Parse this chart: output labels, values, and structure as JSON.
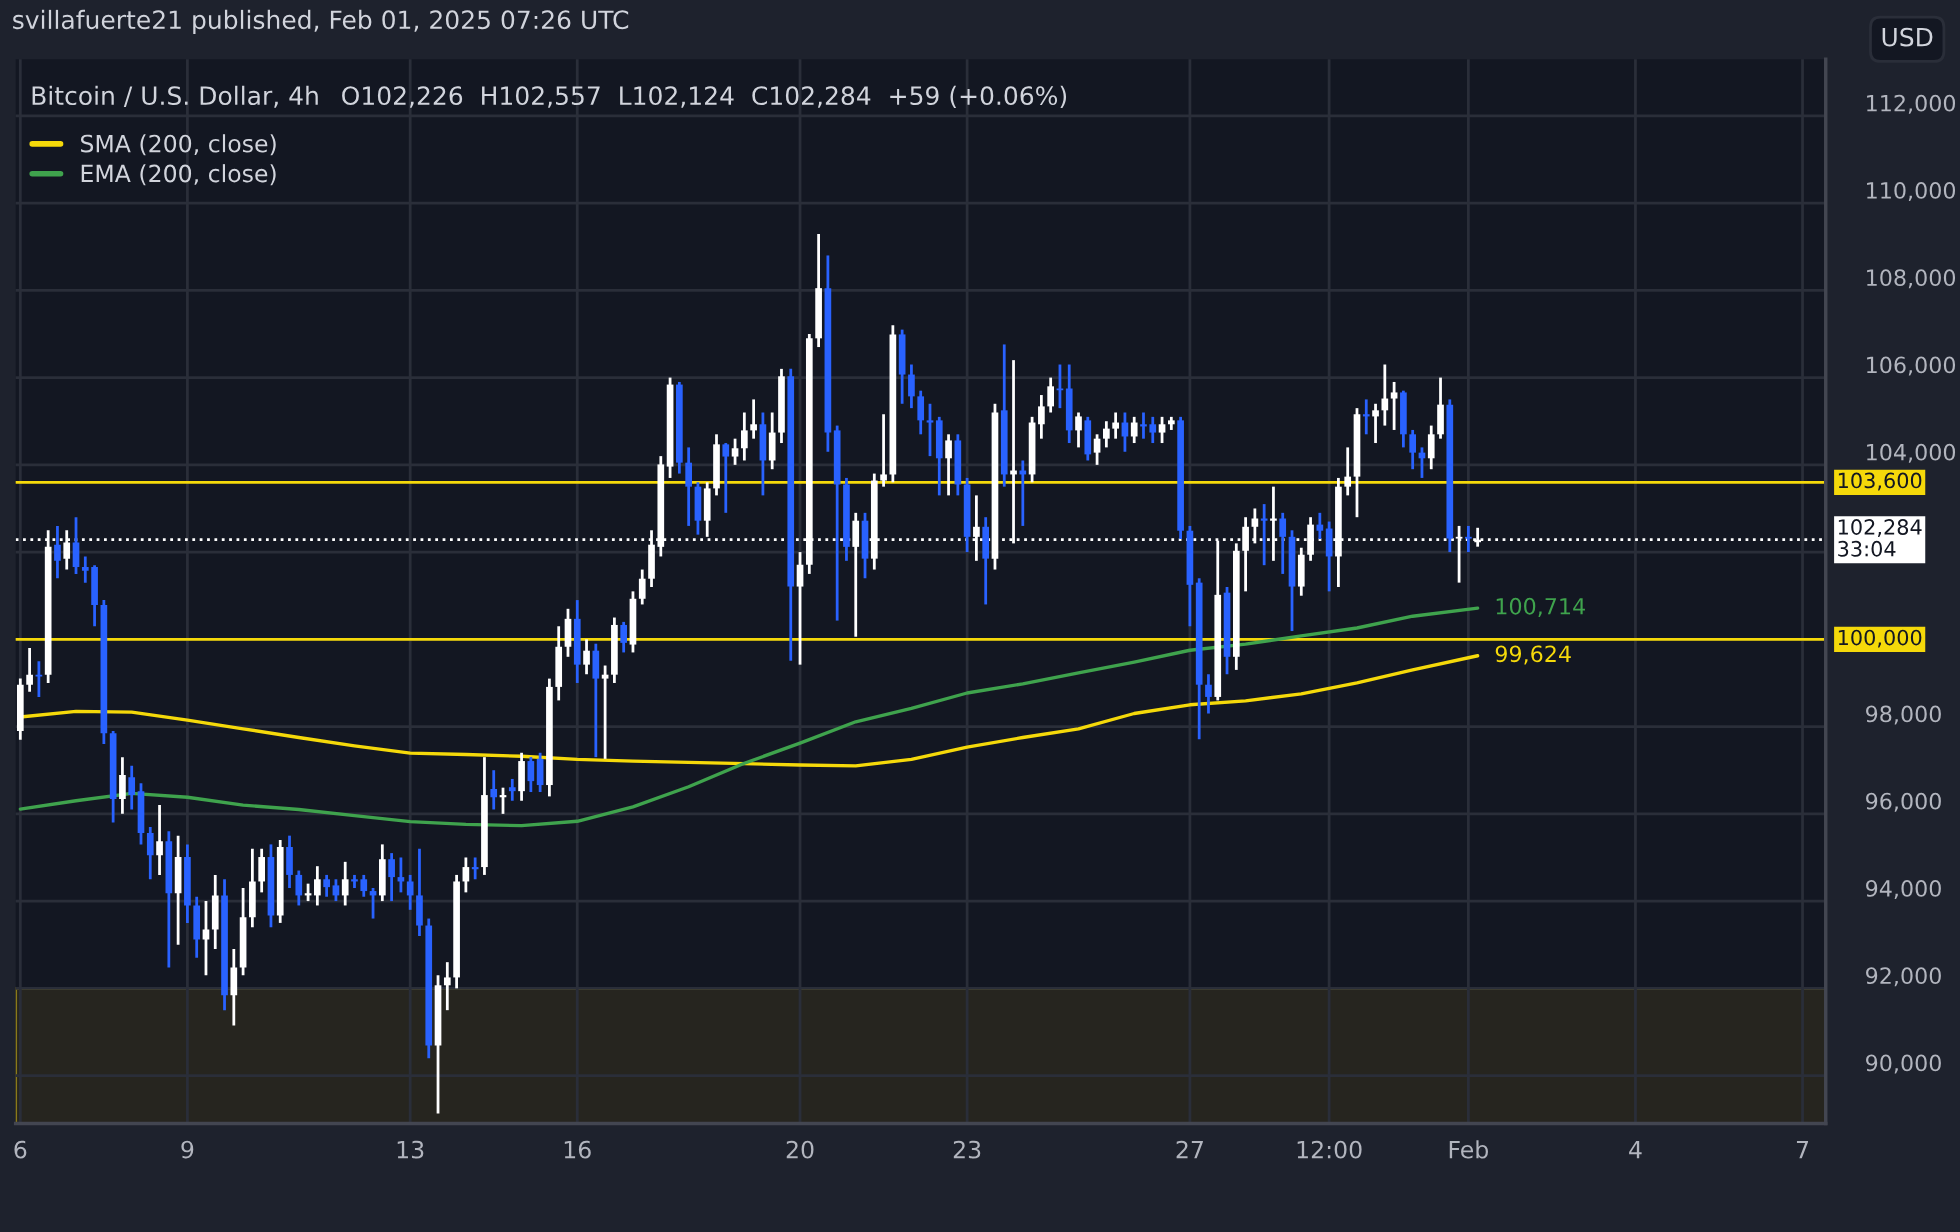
{
  "chart_data": {
    "type": "candlestick",
    "title": "Bitcoin / U.S. Dollar, 4h",
    "subtitle": "O102,226  H102,557  L102,124  C102,284  +59 (+0.06%)",
    "ylabel": "USD",
    "annotations": [
      "svillafuerte21 published, Feb 01, 2025 07:26 UTC"
    ],
    "categories": [
      "6",
      null,
      null,
      null,
      null,
      null,
      null,
      null,
      null,
      null,
      null,
      null,
      null,
      null,
      null,
      null,
      null,
      null,
      "9",
      null,
      null,
      null,
      null,
      null,
      null,
      null,
      null,
      null,
      null,
      null,
      null,
      null,
      null,
      null,
      null,
      null,
      null,
      null,
      null,
      null,
      null,
      null,
      "13",
      null,
      null,
      null,
      null,
      null,
      null,
      null,
      null,
      null,
      null,
      null,
      null,
      null,
      null,
      null,
      null,
      null,
      "16",
      null,
      null,
      null,
      null,
      null,
      null,
      null,
      null,
      null,
      null,
      null,
      null,
      null,
      null,
      null,
      null,
      null,
      null,
      null,
      null,
      null,
      null,
      null,
      "20",
      null,
      null,
      null,
      null,
      null,
      null,
      null,
      null,
      null,
      null,
      null,
      null,
      null,
      null,
      null,
      null,
      null,
      "23",
      null,
      null,
      null,
      null,
      null,
      null,
      null,
      null,
      null,
      null,
      null,
      null,
      null,
      null,
      null,
      null,
      null,
      null,
      null,
      null,
      null,
      null,
      null,
      "27",
      null,
      null,
      null,
      null,
      null,
      null,
      null,
      null,
      null,
      null,
      null,
      null,
      null,
      null,
      "12:00",
      null,
      null,
      null,
      null,
      null,
      null,
      null,
      null,
      null,
      null,
      null,
      null,
      null,
      null,
      "Feb",
      null,
      null,
      null,
      null,
      null,
      null,
      null,
      null,
      null,
      null,
      null,
      null,
      null,
      null,
      null,
      null,
      null,
      "4",
      null,
      null,
      null,
      null,
      null,
      null,
      null,
      null,
      null,
      null,
      null,
      null,
      null,
      null,
      null,
      null,
      null,
      "7",
      null,
      null
    ],
    "ohlc": [
      [
        97900,
        99100,
        97700,
        98960
      ],
      [
        98960,
        99800,
        98800,
        99190
      ],
      [
        99190,
        99500,
        98680,
        99150
      ],
      [
        99190,
        102500,
        99000,
        102120
      ],
      [
        102170,
        102600,
        101400,
        101800
      ],
      [
        101850,
        102500,
        101600,
        102220
      ],
      [
        102220,
        102800,
        101500,
        101660
      ],
      [
        101660,
        101900,
        101300,
        101570
      ],
      [
        101660,
        101700,
        100300,
        100790
      ],
      [
        100790,
        100900,
        97600,
        97850
      ],
      [
        97850,
        97900,
        95800,
        96340
      ],
      [
        96340,
        97300,
        96000,
        96890
      ],
      [
        96840,
        97100,
        96100,
        96430
      ],
      [
        96520,
        96700,
        95300,
        95560
      ],
      [
        95560,
        95700,
        94500,
        95050
      ],
      [
        95050,
        96200,
        94600,
        95370
      ],
      [
        95370,
        95600,
        92480,
        94180
      ],
      [
        94180,
        95500,
        93000,
        95010
      ],
      [
        95010,
        95300,
        93500,
        93900
      ],
      [
        93900,
        94100,
        92700,
        93120
      ],
      [
        93120,
        94000,
        92300,
        93350
      ],
      [
        93350,
        94600,
        92900,
        94130
      ],
      [
        94130,
        94500,
        91500,
        91840
      ],
      [
        91840,
        92900,
        91150,
        92480
      ],
      [
        92480,
        94300,
        92300,
        93630
      ],
      [
        93630,
        95200,
        93400,
        94450
      ],
      [
        94450,
        95200,
        94200,
        95010
      ],
      [
        95010,
        95300,
        93400,
        93670
      ],
      [
        93670,
        95400,
        93500,
        95240
      ],
      [
        95240,
        95500,
        94300,
        94600
      ],
      [
        94600,
        94700,
        93900,
        94130
      ],
      [
        94130,
        94400,
        94000,
        94180
      ],
      [
        94130,
        94800,
        93900,
        94500
      ],
      [
        94500,
        94600,
        94100,
        94320
      ],
      [
        94360,
        94500,
        94000,
        94130
      ],
      [
        94130,
        94900,
        93900,
        94500
      ],
      [
        94500,
        94600,
        94300,
        94450
      ],
      [
        94500,
        94600,
        94100,
        94230
      ],
      [
        94230,
        94300,
        93600,
        94130
      ],
      [
        94130,
        95300,
        94000,
        94960
      ],
      [
        94960,
        95100,
        94000,
        94550
      ],
      [
        94550,
        95000,
        94200,
        94450
      ],
      [
        94450,
        94600,
        93800,
        94130
      ],
      [
        94130,
        95200,
        93200,
        93440
      ],
      [
        93440,
        93600,
        90400,
        90690
      ],
      [
        90690,
        92300,
        89130,
        92070
      ],
      [
        92070,
        92600,
        91500,
        92250
      ],
      [
        92250,
        94600,
        92000,
        94450
      ],
      [
        94450,
        95000,
        94200,
        94780
      ],
      [
        94780,
        95000,
        94500,
        94730
      ],
      [
        94780,
        97300,
        94600,
        96430
      ],
      [
        96570,
        97000,
        96100,
        96380
      ],
      [
        96380,
        96600,
        96000,
        96430
      ],
      [
        96610,
        96800,
        96300,
        96520
      ],
      [
        96520,
        97400,
        96300,
        97210
      ],
      [
        97210,
        97300,
        96500,
        96750
      ],
      [
        97260,
        97400,
        96500,
        96660
      ],
      [
        96660,
        99100,
        96400,
        98910
      ],
      [
        98910,
        100300,
        98600,
        99830
      ],
      [
        99830,
        100700,
        99600,
        100470
      ],
      [
        100470,
        100900,
        99000,
        99420
      ],
      [
        99420,
        100000,
        99200,
        99740
      ],
      [
        99740,
        99900,
        97300,
        99100
      ],
      [
        99100,
        99400,
        97260,
        99190
      ],
      [
        99190,
        100500,
        99000,
        100330
      ],
      [
        100330,
        100400,
        99700,
        99920
      ],
      [
        99880,
        101100,
        99700,
        100930
      ],
      [
        100930,
        101600,
        100800,
        101390
      ],
      [
        101390,
        102500,
        101200,
        102170
      ],
      [
        102120,
        104200,
        101900,
        104010
      ],
      [
        103960,
        106000,
        103700,
        105840
      ],
      [
        105840,
        105900,
        103800,
        104050
      ],
      [
        104050,
        104400,
        102600,
        103500
      ],
      [
        103500,
        103600,
        102400,
        102720
      ],
      [
        102720,
        103600,
        102350,
        103460
      ],
      [
        103460,
        104700,
        103300,
        104470
      ],
      [
        104470,
        104500,
        102900,
        104190
      ],
      [
        104190,
        104600,
        104000,
        104380
      ],
      [
        104380,
        105200,
        104100,
        104790
      ],
      [
        104790,
        105500,
        104600,
        104930
      ],
      [
        104930,
        105200,
        103300,
        104100
      ],
      [
        104100,
        105200,
        103900,
        104740
      ],
      [
        104740,
        106200,
        104500,
        106030
      ],
      [
        106030,
        106200,
        99510,
        101210
      ],
      [
        101210,
        102000,
        99420,
        101710
      ],
      [
        101710,
        107000,
        101500,
        106900
      ],
      [
        106900,
        109290,
        106700,
        108050
      ],
      [
        108050,
        108800,
        104300,
        104740
      ],
      [
        104790,
        104900,
        100430,
        103550
      ],
      [
        103550,
        103700,
        101800,
        102120
      ],
      [
        102120,
        102900,
        100060,
        102720
      ],
      [
        102720,
        102900,
        101400,
        101850
      ],
      [
        101850,
        103800,
        101600,
        103640
      ],
      [
        103640,
        105160,
        103500,
        103780
      ],
      [
        103780,
        107200,
        103600,
        106990
      ],
      [
        106990,
        107100,
        105400,
        106070
      ],
      [
        106070,
        106300,
        105300,
        105570
      ],
      [
        105570,
        105700,
        104700,
        105020
      ],
      [
        105020,
        105400,
        104200,
        104970
      ],
      [
        105020,
        105100,
        103300,
        104150
      ],
      [
        104150,
        104700,
        103300,
        104560
      ],
      [
        104560,
        104700,
        103300,
        103550
      ],
      [
        103550,
        103700,
        102000,
        102350
      ],
      [
        102350,
        103300,
        101800,
        102580
      ],
      [
        102580,
        102800,
        100800,
        101850
      ],
      [
        101850,
        105400,
        101600,
        105200
      ],
      [
        105250,
        106760,
        103500,
        103780
      ],
      [
        103780,
        106400,
        102200,
        103870
      ],
      [
        103870,
        104100,
        102600,
        103780
      ],
      [
        103780,
        105100,
        103600,
        104970
      ],
      [
        104930,
        105600,
        104600,
        105340
      ],
      [
        105340,
        106000,
        105200,
        105800
      ],
      [
        105750,
        106300,
        105300,
        105710
      ],
      [
        105750,
        106300,
        104500,
        104790
      ],
      [
        104790,
        105200,
        104400,
        105110
      ],
      [
        105020,
        105100,
        104100,
        104240
      ],
      [
        104280,
        104700,
        104000,
        104600
      ],
      [
        104600,
        105000,
        104400,
        104830
      ],
      [
        104830,
        105200,
        104600,
        104970
      ],
      [
        104970,
        105200,
        104300,
        104650
      ],
      [
        104650,
        105100,
        104500,
        104970
      ],
      [
        104930,
        105200,
        104600,
        104880
      ],
      [
        104930,
        105100,
        104500,
        104740
      ],
      [
        104740,
        105100,
        104500,
        104930
      ],
      [
        104930,
        105100,
        104800,
        105020
      ],
      [
        105020,
        105100,
        102300,
        102490
      ],
      [
        102490,
        102600,
        100300,
        101250
      ],
      [
        101300,
        101400,
        97710,
        98960
      ],
      [
        98960,
        99200,
        98300,
        98680
      ],
      [
        98680,
        102260,
        98600,
        101020
      ],
      [
        101070,
        101200,
        99200,
        99600
      ],
      [
        99600,
        102200,
        99300,
        102030
      ],
      [
        102030,
        102800,
        101100,
        102580
      ],
      [
        102580,
        103000,
        102200,
        102770
      ],
      [
        102770,
        103100,
        101700,
        102720
      ],
      [
        102720,
        103500,
        101800,
        102770
      ],
      [
        102770,
        102900,
        101500,
        102350
      ],
      [
        102350,
        102500,
        100190,
        101210
      ],
      [
        101210,
        102100,
        101000,
        101940
      ],
      [
        101940,
        102800,
        101800,
        102630
      ],
      [
        102630,
        102900,
        102300,
        102490
      ],
      [
        102540,
        102700,
        101100,
        101900
      ],
      [
        101900,
        103700,
        101200,
        103500
      ],
      [
        103500,
        104400,
        103300,
        103730
      ],
      [
        103730,
        105300,
        102800,
        105160
      ],
      [
        105160,
        105500,
        104700,
        105110
      ],
      [
        105110,
        105400,
        104500,
        105250
      ],
      [
        105250,
        106300,
        104900,
        105520
      ],
      [
        105520,
        105900,
        104800,
        105660
      ],
      [
        105660,
        105700,
        104400,
        104700
      ],
      [
        104700,
        104800,
        103900,
        104280
      ],
      [
        104280,
        104400,
        103700,
        104150
      ],
      [
        104150,
        104900,
        103900,
        104700
      ],
      [
        104700,
        106000,
        104600,
        105380
      ],
      [
        105380,
        105500,
        102000,
        102310
      ],
      [
        102310,
        102600,
        101300,
        102350
      ],
      [
        102350,
        102600,
        102000,
        102310
      ],
      [
        102226,
        102557,
        102124,
        102284
      ],
      null,
      null,
      null,
      null,
      null,
      null,
      null,
      null,
      null,
      null,
      null,
      null,
      null,
      null,
      null,
      null,
      null,
      null,
      null,
      null,
      null,
      null,
      null,
      null,
      null,
      null,
      null,
      null,
      null,
      null,
      null,
      null,
      null,
      null,
      null,
      null,
      null
    ],
    "series": [
      {
        "name": "SMA (200, close)",
        "type": "line",
        "color": "#f5d90a",
        "value_labels": [
          null,
          null,
          null,
          null,
          null,
          null,
          null,
          null,
          null,
          null,
          null,
          null,
          null,
          null,
          null,
          null,
          null,
          null,
          null,
          null,
          null,
          null,
          null,
          null,
          null,
          null,
          null,
          null,
          null,
          null,
          null,
          null,
          null,
          null,
          null,
          null,
          null,
          null,
          null,
          null,
          null,
          null,
          null,
          null,
          null,
          null,
          null,
          null,
          null,
          null,
          null,
          null,
          null,
          null,
          null,
          null,
          null,
          null,
          null,
          null,
          null,
          null,
          null,
          null,
          null,
          null,
          null,
          null,
          null,
          null,
          null,
          null,
          null,
          null,
          null,
          null,
          null,
          null,
          null,
          null,
          null,
          null,
          null,
          null,
          null,
          null,
          null,
          null,
          null,
          null,
          null,
          null,
          null,
          null,
          null,
          null,
          null,
          null,
          null,
          null,
          null,
          null,
          null,
          null,
          null,
          null,
          null,
          null,
          null,
          null,
          null,
          null,
          null,
          null,
          null,
          null,
          null,
          null,
          null,
          null,
          null,
          null,
          null,
          null,
          null,
          null,
          null,
          null,
          null,
          null,
          null,
          null,
          null,
          null,
          null,
          null,
          null,
          null,
          null,
          null,
          null,
          null,
          null,
          null,
          null,
          null,
          null,
          null,
          null,
          null,
          null,
          null,
          null,
          null,
          null,
          null,
          null,
          "99,624",
          null,
          null,
          null,
          null,
          null,
          null,
          null,
          null,
          null,
          null,
          null,
          null,
          null,
          null,
          null,
          null,
          null,
          null,
          null,
          null,
          null,
          null,
          null,
          null,
          null,
          null,
          null,
          null,
          null,
          null,
          null,
          null,
          null,
          null,
          null,
          null,
          null
        ],
        "values": [
          98220,
          null,
          null,
          null,
          null,
          null,
          98350,
          null,
          null,
          null,
          null,
          null,
          98330,
          null,
          null,
          null,
          null,
          null,
          98150,
          null,
          null,
          null,
          null,
          null,
          97950,
          null,
          null,
          null,
          null,
          null,
          97750,
          null,
          null,
          null,
          null,
          null,
          97560,
          null,
          null,
          null,
          null,
          null,
          97390,
          null,
          null,
          null,
          null,
          null,
          97360,
          null,
          null,
          null,
          null,
          null,
          97320,
          null,
          null,
          null,
          null,
          null,
          97250,
          null,
          null,
          null,
          null,
          null,
          97210,
          null,
          null,
          null,
          null,
          null,
          97180,
          null,
          null,
          null,
          null,
          null,
          97150,
          null,
          null,
          null,
          null,
          null,
          97120,
          null,
          null,
          null,
          null,
          null,
          97100,
          null,
          null,
          null,
          null,
          null,
          97250,
          null,
          null,
          null,
          null,
          null,
          97530,
          null,
          null,
          null,
          null,
          null,
          97750,
          null,
          null,
          null,
          null,
          null,
          97950,
          null,
          null,
          null,
          null,
          null,
          98300,
          null,
          null,
          null,
          null,
          null,
          98500,
          null,
          null,
          null,
          null,
          null,
          98590,
          null,
          null,
          null,
          null,
          null,
          98750,
          null,
          null,
          null,
          null,
          null,
          99000,
          null,
          null,
          null,
          null,
          null,
          99300,
          null,
          null,
          null,
          null,
          null,
          null,
          99624,
          null,
          null,
          null,
          null,
          null,
          null,
          null,
          null,
          null,
          null,
          null,
          null,
          null,
          null,
          null,
          null,
          null,
          null,
          null,
          null,
          null,
          null,
          null,
          null,
          null,
          null,
          null,
          null,
          null,
          null,
          null,
          null,
          null,
          null,
          null,
          null,
          null
        ]
      },
      {
        "name": "EMA (200, close)",
        "type": "line",
        "color": "#3fa34d",
        "value_labels": [
          null,
          null,
          null,
          null,
          null,
          null,
          null,
          null,
          null,
          null,
          null,
          null,
          null,
          null,
          null,
          null,
          null,
          null,
          null,
          null,
          null,
          null,
          null,
          null,
          null,
          null,
          null,
          null,
          null,
          null,
          null,
          null,
          null,
          null,
          null,
          null,
          null,
          null,
          null,
          null,
          null,
          null,
          null,
          null,
          null,
          null,
          null,
          null,
          null,
          null,
          null,
          null,
          null,
          null,
          null,
          null,
          null,
          null,
          null,
          null,
          null,
          null,
          null,
          null,
          null,
          null,
          null,
          null,
          null,
          null,
          null,
          null,
          null,
          null,
          null,
          null,
          null,
          null,
          null,
          null,
          null,
          null,
          null,
          null,
          null,
          null,
          null,
          null,
          null,
          null,
          null,
          null,
          null,
          null,
          null,
          null,
          null,
          null,
          null,
          null,
          null,
          null,
          null,
          null,
          null,
          null,
          null,
          null,
          null,
          null,
          null,
          null,
          null,
          null,
          null,
          null,
          null,
          null,
          null,
          null,
          null,
          null,
          null,
          null,
          null,
          null,
          null,
          null,
          null,
          null,
          null,
          null,
          null,
          null,
          null,
          null,
          null,
          null,
          null,
          null,
          null,
          null,
          null,
          null,
          null,
          null,
          null,
          null,
          null,
          null,
          null,
          null,
          null,
          null,
          null,
          null,
          null,
          "100,714",
          null,
          null,
          null,
          null,
          null,
          null,
          null,
          null,
          null,
          null,
          null,
          null,
          null,
          null,
          null,
          null,
          null,
          null,
          null,
          null,
          null,
          null,
          null,
          null,
          null,
          null,
          null,
          null,
          null,
          null,
          null,
          null,
          null,
          null,
          null,
          null,
          null
        ],
        "values": [
          96110,
          null,
          null,
          null,
          null,
          null,
          96300,
          null,
          null,
          null,
          null,
          null,
          96470,
          null,
          null,
          null,
          null,
          null,
          96380,
          null,
          null,
          null,
          null,
          null,
          96200,
          null,
          null,
          null,
          null,
          null,
          96100,
          null,
          null,
          null,
          null,
          null,
          95960,
          null,
          null,
          null,
          null,
          null,
          95820,
          null,
          null,
          null,
          null,
          null,
          95760,
          null,
          null,
          null,
          null,
          null,
          95730,
          null,
          null,
          null,
          null,
          null,
          95830,
          null,
          null,
          null,
          null,
          null,
          96160,
          null,
          null,
          null,
          null,
          null,
          96620,
          null,
          null,
          null,
          null,
          null,
          97160,
          null,
          null,
          null,
          null,
          null,
          97620,
          null,
          null,
          null,
          null,
          null,
          98110,
          null,
          null,
          null,
          null,
          null,
          98420,
          null,
          null,
          null,
          null,
          null,
          98770,
          null,
          null,
          null,
          null,
          null,
          98980,
          null,
          null,
          null,
          null,
          null,
          99230,
          null,
          null,
          null,
          null,
          null,
          99480,
          null,
          null,
          null,
          null,
          null,
          99750,
          null,
          null,
          null,
          null,
          null,
          99890,
          null,
          null,
          null,
          null,
          null,
          100080,
          null,
          null,
          null,
          null,
          null,
          100260,
          null,
          null,
          null,
          null,
          null,
          100530,
          null,
          null,
          null,
          null,
          null,
          null,
          100714,
          null,
          null,
          null,
          null,
          null,
          null,
          null,
          null,
          null,
          null,
          null,
          null,
          null,
          null,
          null,
          null,
          null,
          null,
          null,
          null,
          null,
          null,
          null,
          null,
          null,
          null,
          null,
          null,
          null,
          null,
          null,
          null,
          null,
          null,
          null,
          null,
          null
        ]
      }
    ],
    "ylim": [
      88900,
      113300
    ],
    "yticks": [
      {
        "value": 90000,
        "label": "90,000"
      },
      {
        "value": 92000,
        "label": "92,000"
      },
      {
        "value": 94000,
        "label": "94,000"
      },
      {
        "value": 96000,
        "label": "96,000"
      },
      {
        "value": 98000,
        "label": "98,000"
      },
      {
        "value": 100000,
        "label": null
      },
      {
        "value": 102000,
        "label": null
      },
      {
        "value": 104000,
        "label": "104,000"
      },
      {
        "value": 106000,
        "label": "106,000"
      },
      {
        "value": 108000,
        "label": "108,000"
      },
      {
        "value": 110000,
        "label": "110,000"
      },
      {
        "value": 112000,
        "label": "112,000"
      }
    ],
    "ref_lines": [
      {
        "axis": "y",
        "value": 103600,
        "label": "103,600",
        "color": "#f5d90a",
        "line_style": "solid"
      },
      {
        "axis": "y",
        "value": 100000,
        "label": "100,000",
        "color": "#f5d90a",
        "line_style": "solid"
      },
      {
        "axis": "y",
        "value": 102284,
        "label": "102,284\n33:04",
        "color": "#ffffff",
        "line_style": "dotted"
      }
    ],
    "bands": [
      {
        "axis": "y",
        "from": 88900,
        "to": 92000,
        "color": "#26251f"
      }
    ],
    "grid": true,
    "legend": "top left"
  }
}
